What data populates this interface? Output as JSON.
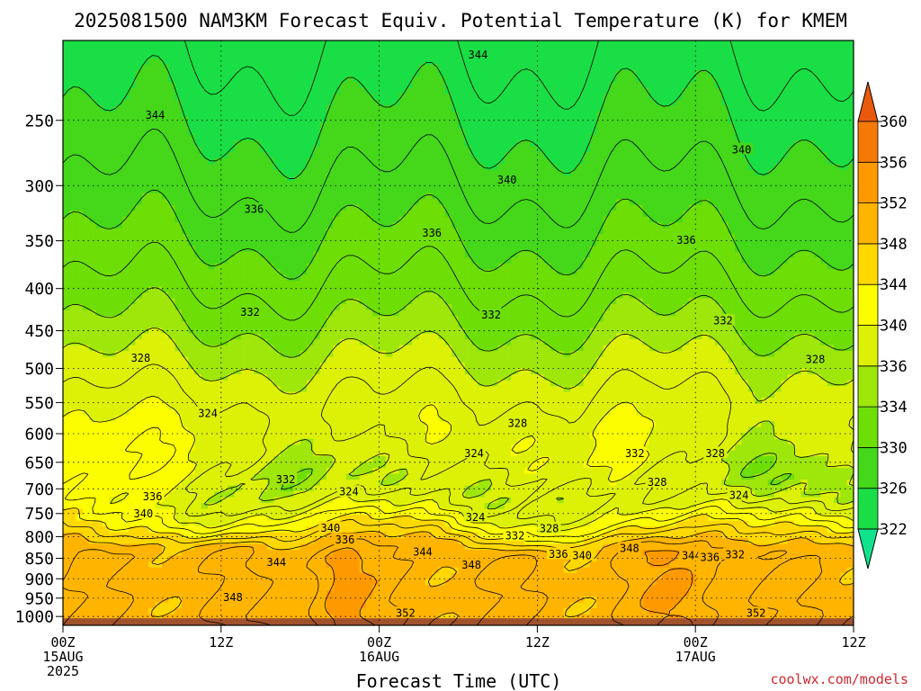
{
  "chart_data": {
    "type": "heatmap",
    "title": "2025081500 NAM3KM Forecast Equiv. Potential Temperature (K) for KMEM",
    "xlabel": "Forecast Time (UTC)",
    "ylabel": "",
    "x_ticks": [
      {
        "hour": 0,
        "lines": [
          "00Z",
          "15AUG",
          "2025"
        ]
      },
      {
        "hour": 12,
        "lines": [
          "12Z"
        ]
      },
      {
        "hour": 24,
        "lines": [
          "00Z",
          "16AUG"
        ]
      },
      {
        "hour": 36,
        "lines": [
          "12Z"
        ]
      },
      {
        "hour": 48,
        "lines": [
          "00Z",
          "17AUG"
        ]
      },
      {
        "hour": 60,
        "lines": [
          "12Z"
        ]
      }
    ],
    "y_ticks": [
      250,
      300,
      350,
      400,
      450,
      500,
      550,
      600,
      650,
      700,
      750,
      800,
      850,
      900,
      950,
      1000
    ],
    "y_scale": "log",
    "ylim_hpa": [
      1025,
      200
    ],
    "xlim_hours": [
      0,
      60
    ],
    "grid": true,
    "colorbar": {
      "unit": "K",
      "levels": [
        322,
        326,
        330,
        334,
        336,
        340,
        344,
        348,
        352,
        356,
        360
      ],
      "colors": [
        "#11e38d",
        "#1ade45",
        "#44d71a",
        "#6dde06",
        "#9fe60b",
        "#ddf106",
        "#fcfe00",
        "#ffd800",
        "#ffb500",
        "#ff9900",
        "#f47a05",
        "#e9590c"
      ]
    },
    "contour_labels": [
      {
        "text": "344",
        "hour": 31.5,
        "hpa": 208
      },
      {
        "text": "344",
        "hour": 7.0,
        "hpa": 246
      },
      {
        "text": "340",
        "hour": 51.5,
        "hpa": 271
      },
      {
        "text": "340",
        "hour": 33.7,
        "hpa": 295
      },
      {
        "text": "336",
        "hour": 14.5,
        "hpa": 320
      },
      {
        "text": "336",
        "hour": 28.0,
        "hpa": 342
      },
      {
        "text": "336",
        "hour": 47.3,
        "hpa": 349
      },
      {
        "text": "332",
        "hour": 14.2,
        "hpa": 427
      },
      {
        "text": "332",
        "hour": 32.5,
        "hpa": 430
      },
      {
        "text": "332",
        "hour": 50.1,
        "hpa": 437
      },
      {
        "text": "328",
        "hour": 5.9,
        "hpa": 485
      },
      {
        "text": "328",
        "hour": 57.1,
        "hpa": 487
      },
      {
        "text": "328",
        "hour": 34.5,
        "hpa": 582
      },
      {
        "text": "324",
        "hour": 11.0,
        "hpa": 566
      },
      {
        "text": "324",
        "hour": 31.2,
        "hpa": 633
      },
      {
        "text": "332",
        "hour": 43.4,
        "hpa": 633
      },
      {
        "text": "328",
        "hour": 49.5,
        "hpa": 633
      },
      {
        "text": "332",
        "hour": 16.9,
        "hpa": 681
      },
      {
        "text": "328",
        "hour": 45.1,
        "hpa": 686
      },
      {
        "text": "324",
        "hour": 21.7,
        "hpa": 705
      },
      {
        "text": "324",
        "hour": 51.3,
        "hpa": 712
      },
      {
        "text": "336",
        "hour": 6.8,
        "hpa": 715
      },
      {
        "text": "324",
        "hour": 31.3,
        "hpa": 757
      },
      {
        "text": "340",
        "hour": 6.1,
        "hpa": 750
      },
      {
        "text": "340",
        "hour": 20.3,
        "hpa": 780
      },
      {
        "text": "328",
        "hour": 36.9,
        "hpa": 781
      },
      {
        "text": "332",
        "hour": 34.3,
        "hpa": 797
      },
      {
        "text": "336",
        "hour": 21.4,
        "hpa": 806
      },
      {
        "text": "344",
        "hour": 27.3,
        "hpa": 834
      },
      {
        "text": "348",
        "hour": 43.0,
        "hpa": 826
      },
      {
        "text": "336",
        "hour": 37.6,
        "hpa": 839
      },
      {
        "text": "340",
        "hour": 39.4,
        "hpa": 842
      },
      {
        "text": "344",
        "hour": 47.7,
        "hpa": 843
      },
      {
        "text": "336",
        "hour": 49.1,
        "hpa": 847
      },
      {
        "text": "332",
        "hour": 51.0,
        "hpa": 840
      },
      {
        "text": "344",
        "hour": 16.2,
        "hpa": 858
      },
      {
        "text": "348",
        "hour": 31.0,
        "hpa": 865
      },
      {
        "text": "348",
        "hour": 12.9,
        "hpa": 947
      },
      {
        "text": "352",
        "hour": 26.0,
        "hpa": 989
      },
      {
        "text": "352",
        "hour": 52.6,
        "hpa": 990
      }
    ]
  },
  "credit": "coolwx.com/models"
}
